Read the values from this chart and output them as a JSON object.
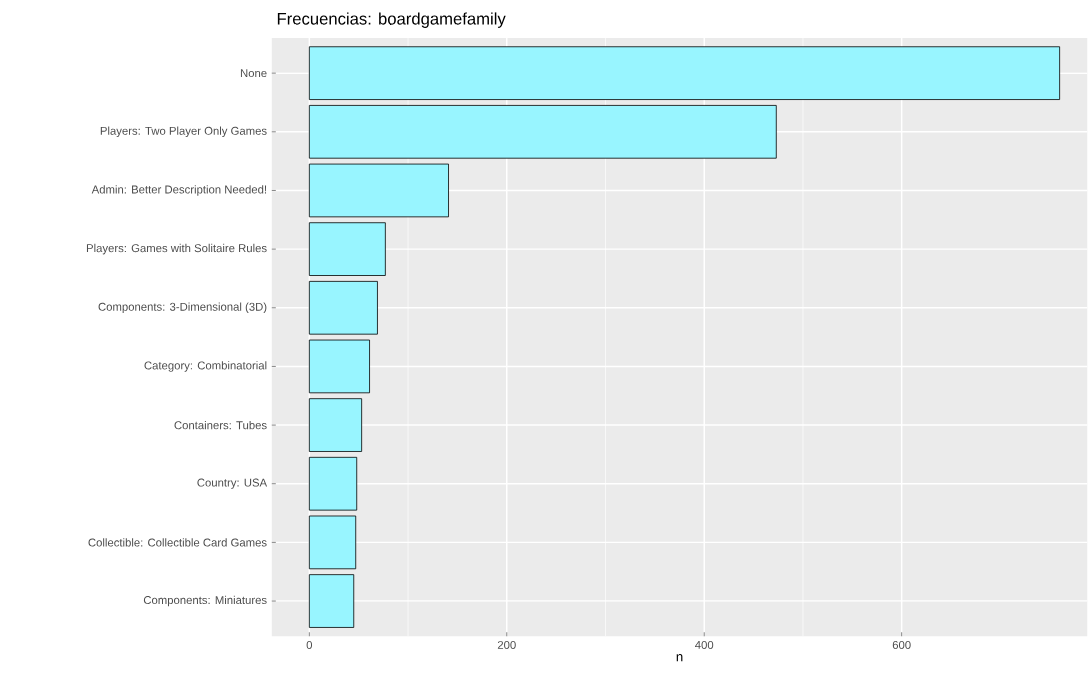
{
  "chart_data": {
    "type": "bar",
    "orientation": "horizontal",
    "title": "Frecuencias: boardgamefamily",
    "xlabel": "n",
    "categories": [
      "None",
      "Players: Two Player Only Games",
      "Admin: Better Description Needed!",
      "Players: Games with Solitaire Rules",
      "Components: 3-Dimensional (3D)",
      "Category: Combinatorial",
      "Containers: Tubes",
      "Country: USA",
      "Collectible: Collectible Card Games",
      "Components: Miniatures"
    ],
    "values": [
      760,
      473,
      141,
      77,
      69,
      61,
      53,
      48,
      47,
      45
    ],
    "color": "#98f5ff",
    "xlim": [
      -38,
      788
    ],
    "xticks": [
      0,
      200,
      400,
      600
    ],
    "grid": true
  }
}
